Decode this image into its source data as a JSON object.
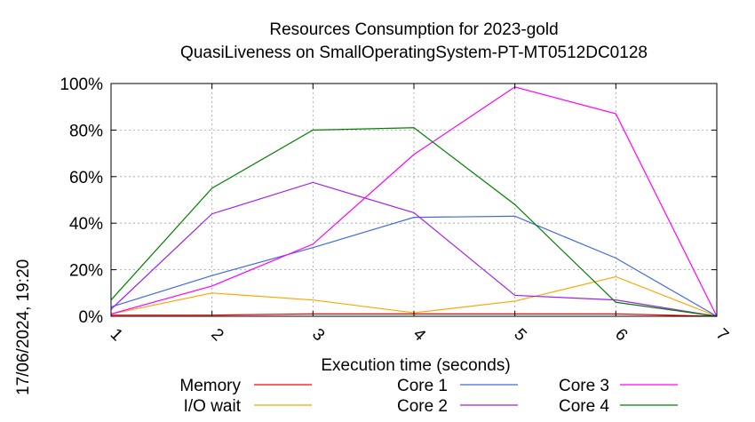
{
  "chart_data": {
    "type": "line",
    "title": [
      "Resources Consumption for 2023-gold",
      "QuasiLiveness on SmallOperatingSystem-PT-MT0512DC0128"
    ],
    "xlabel": "Execution time (seconds)",
    "ylabel": "",
    "x": [
      1,
      2,
      3,
      4,
      5,
      6,
      7
    ],
    "xlim": [
      1,
      7
    ],
    "ylim": [
      0,
      100
    ],
    "x_ticks": [
      "1",
      "2",
      "3",
      "4",
      "5",
      "6",
      "7"
    ],
    "y_ticks": [
      "0%",
      "20%",
      "40%",
      "60%",
      "80%",
      "100%"
    ],
    "grid": true,
    "legend_position": "bottom",
    "series": [
      {
        "name": "Memory",
        "color": "#ff0000",
        "values": [
          0.5,
          0.5,
          1,
          1,
          1,
          1,
          0
        ]
      },
      {
        "name": "I/O wait",
        "color": "#ffa500",
        "values": [
          1,
          10,
          7,
          1.5,
          6.5,
          17,
          0
        ]
      },
      {
        "name": "Core 1",
        "color": "#4169e1",
        "values": [
          4,
          17.5,
          29.5,
          42.5,
          43,
          25,
          0
        ]
      },
      {
        "name": "Core 2",
        "color": "#a020f0",
        "values": [
          3,
          44,
          57.5,
          44.5,
          9,
          7,
          0
        ]
      },
      {
        "name": "Core 3",
        "color": "#ff00ff",
        "values": [
          1,
          13,
          31,
          69.5,
          98.5,
          87,
          0
        ]
      },
      {
        "name": "Core 4",
        "color": "#008000",
        "values": [
          7,
          55,
          80,
          81,
          48,
          6,
          0
        ]
      }
    ]
  },
  "timestamp": "17/06/2024, 19:20"
}
